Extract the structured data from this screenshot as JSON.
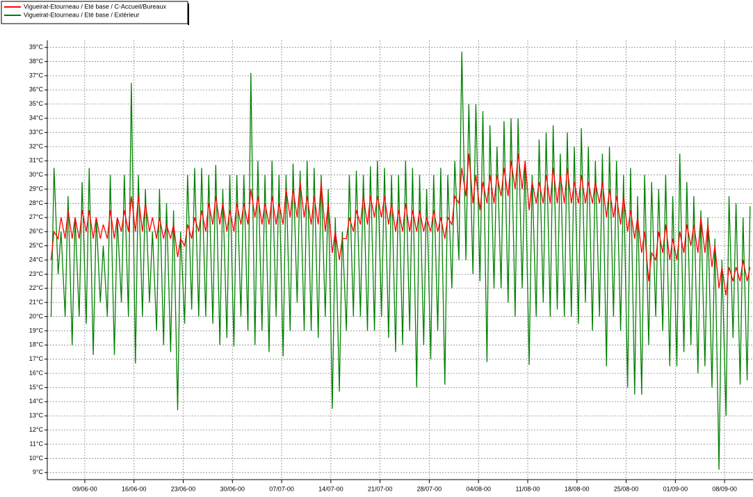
{
  "chart_data": {
    "type": "line",
    "x": [
      "2000-06-04T05:00",
      "2000-06-04T15:00",
      "2000-06-05T05:00",
      "2000-06-05T15:00",
      "2000-06-06T05:00",
      "2000-06-06T15:00",
      "2000-06-07T05:00",
      "2000-06-07T15:00",
      "2000-06-08T05:00",
      "2000-06-08T15:00",
      "2000-06-09T05:00",
      "2000-06-09T15:00",
      "2000-06-10T05:00",
      "2000-06-10T15:00",
      "2000-06-11T05:00",
      "2000-06-11T15:00",
      "2000-06-12T05:00",
      "2000-06-12T15:00",
      "2000-06-13T05:00",
      "2000-06-13T15:00",
      "2000-06-14T05:00",
      "2000-06-14T15:00",
      "2000-06-15T05:00",
      "2000-06-15T15:00",
      "2000-06-16T05:00",
      "2000-06-16T15:00",
      "2000-06-17T05:00",
      "2000-06-17T15:00",
      "2000-06-18T05:00",
      "2000-06-18T15:00",
      "2000-06-19T05:00",
      "2000-06-19T15:00",
      "2000-06-20T05:00",
      "2000-06-20T15:00",
      "2000-06-21T05:00",
      "2000-06-21T15:00",
      "2000-06-22T05:00",
      "2000-06-22T15:00",
      "2000-06-23T05:00",
      "2000-06-23T15:00",
      "2000-06-24T05:00",
      "2000-06-24T15:00",
      "2000-06-25T05:00",
      "2000-06-25T15:00",
      "2000-06-26T05:00",
      "2000-06-26T15:00",
      "2000-06-27T05:00",
      "2000-06-27T15:00",
      "2000-06-28T05:00",
      "2000-06-28T15:00",
      "2000-06-29T05:00",
      "2000-06-29T15:00",
      "2000-06-30T05:00",
      "2000-06-30T15:00",
      "2000-07-01T05:00",
      "2000-07-01T15:00",
      "2000-07-02T05:00",
      "2000-07-02T15:00",
      "2000-07-03T05:00",
      "2000-07-03T15:00",
      "2000-07-04T05:00",
      "2000-07-04T15:00",
      "2000-07-05T05:00",
      "2000-07-05T15:00",
      "2000-07-06T05:00",
      "2000-07-06T15:00",
      "2000-07-07T05:00",
      "2000-07-07T15:00",
      "2000-07-08T05:00",
      "2000-07-08T15:00",
      "2000-07-09T05:00",
      "2000-07-09T15:00",
      "2000-07-10T05:00",
      "2000-07-10T15:00",
      "2000-07-11T05:00",
      "2000-07-11T15:00",
      "2000-07-12T05:00",
      "2000-07-12T15:00",
      "2000-07-13T05:00",
      "2000-07-13T15:00",
      "2000-07-14T05:00",
      "2000-07-14T15:00",
      "2000-07-15T05:00",
      "2000-07-15T15:00",
      "2000-07-16T05:00",
      "2000-07-16T15:00",
      "2000-07-17T05:00",
      "2000-07-17T15:00",
      "2000-07-18T05:00",
      "2000-07-18T15:00",
      "2000-07-19T05:00",
      "2000-07-19T15:00",
      "2000-07-20T05:00",
      "2000-07-20T15:00",
      "2000-07-21T05:00",
      "2000-07-21T15:00",
      "2000-07-22T05:00",
      "2000-07-22T15:00",
      "2000-07-23T05:00",
      "2000-07-23T15:00",
      "2000-07-24T05:00",
      "2000-07-24T15:00",
      "2000-07-25T05:00",
      "2000-07-25T15:00",
      "2000-07-26T05:00",
      "2000-07-26T15:00",
      "2000-07-27T05:00",
      "2000-07-27T15:00",
      "2000-07-28T05:00",
      "2000-07-28T15:00",
      "2000-07-29T05:00",
      "2000-07-29T15:00",
      "2000-07-30T05:00",
      "2000-07-30T15:00",
      "2000-07-31T05:00",
      "2000-07-31T15:00",
      "2000-08-01T05:00",
      "2000-08-01T15:00",
      "2000-08-02T05:00",
      "2000-08-02T15:00",
      "2000-08-03T05:00",
      "2000-08-03T15:00",
      "2000-08-04T05:00",
      "2000-08-04T15:00",
      "2000-08-05T05:00",
      "2000-08-05T15:00",
      "2000-08-06T05:00",
      "2000-08-06T15:00",
      "2000-08-07T05:00",
      "2000-08-07T15:00",
      "2000-08-08T05:00",
      "2000-08-08T15:00",
      "2000-08-09T05:00",
      "2000-08-09T15:00",
      "2000-08-10T05:00",
      "2000-08-10T15:00",
      "2000-08-11T05:00",
      "2000-08-11T15:00",
      "2000-08-12T05:00",
      "2000-08-12T15:00",
      "2000-08-13T05:00",
      "2000-08-13T15:00",
      "2000-08-14T05:00",
      "2000-08-14T15:00",
      "2000-08-15T05:00",
      "2000-08-15T15:00",
      "2000-08-16T05:00",
      "2000-08-16T15:00",
      "2000-08-17T05:00",
      "2000-08-17T15:00",
      "2000-08-18T05:00",
      "2000-08-18T15:00",
      "2000-08-19T05:00",
      "2000-08-19T15:00",
      "2000-08-20T05:00",
      "2000-08-20T15:00",
      "2000-08-21T05:00",
      "2000-08-21T15:00",
      "2000-08-22T05:00",
      "2000-08-22T15:00",
      "2000-08-23T05:00",
      "2000-08-23T15:00",
      "2000-08-24T05:00",
      "2000-08-24T15:00",
      "2000-08-25T05:00",
      "2000-08-25T15:00",
      "2000-08-26T05:00",
      "2000-08-26T15:00",
      "2000-08-27T05:00",
      "2000-08-27T15:00",
      "2000-08-28T05:00",
      "2000-08-28T15:00",
      "2000-08-29T05:00",
      "2000-08-29T15:00",
      "2000-08-30T05:00",
      "2000-08-30T15:00",
      "2000-08-31T05:00",
      "2000-08-31T15:00",
      "2000-09-01T05:00",
      "2000-09-01T15:00",
      "2000-09-02T05:00",
      "2000-09-02T15:00",
      "2000-09-03T05:00",
      "2000-09-03T15:00",
      "2000-09-04T05:00",
      "2000-09-04T15:00",
      "2000-09-05T05:00",
      "2000-09-05T15:00",
      "2000-09-06T05:00",
      "2000-09-06T15:00",
      "2000-09-07T05:00",
      "2000-09-07T15:00",
      "2000-09-08T05:00",
      "2000-09-08T15:00",
      "2000-09-09T05:00",
      "2000-09-09T15:00",
      "2000-09-10T05:00",
      "2000-09-10T15:00",
      "2000-09-11T05:00",
      "2000-09-11T15:00"
    ],
    "series": [
      {
        "name": "Vigueirat-Etourneau / Eté base / C-Accueil/Bureaux",
        "color": "#ff0000",
        "values": [
          24,
          26,
          25.5,
          27,
          25.5,
          27.5,
          25.5,
          27,
          25.5,
          27.5,
          26,
          27.5,
          25.5,
          27,
          25.5,
          26.5,
          25.5,
          27.5,
          25.5,
          27,
          26,
          27.5,
          26,
          28.5,
          26,
          28.5,
          26,
          28,
          26,
          27,
          25.5,
          27,
          25.5,
          26.5,
          25.5,
          26.5,
          24.2,
          25.5,
          25,
          26.5,
          25.5,
          27,
          26,
          27.5,
          26,
          28,
          26.5,
          28.5,
          26.5,
          28,
          26,
          27.5,
          26,
          28,
          26.5,
          28,
          26.5,
          29,
          27,
          28.5,
          26.5,
          28,
          26.5,
          28.5,
          26.5,
          28,
          26.5,
          29,
          27,
          29,
          27,
          29.5,
          27,
          28.5,
          26.5,
          28.5,
          26.5,
          29.5,
          26,
          28,
          24.5,
          26,
          24,
          25.5,
          25.5,
          27,
          26,
          27.5,
          26.5,
          28.5,
          26.5,
          28.5,
          27,
          28.5,
          27,
          28.5,
          26.5,
          28,
          26,
          27.5,
          26,
          28,
          26,
          27.5,
          26,
          27.5,
          26,
          27,
          26,
          27.5,
          26,
          27,
          25.5,
          27,
          26.5,
          28.5,
          28,
          30.5,
          28.5,
          31.5,
          28,
          30,
          27.5,
          29.5,
          28,
          30,
          28,
          30,
          28.5,
          30.5,
          28.5,
          31,
          29,
          31.5,
          29,
          31,
          27.5,
          29.5,
          28,
          29.5,
          28,
          30,
          28,
          30.5,
          28,
          30,
          28,
          30.5,
          28,
          29.5,
          28,
          30,
          28,
          29.5,
          28,
          29.5,
          28,
          29.5,
          27,
          29,
          27,
          28.5,
          26.5,
          28.5,
          26,
          27.5,
          25.5,
          27,
          24.5,
          26,
          22.5,
          24.5,
          24,
          26,
          24.5,
          26.5,
          24,
          25.5,
          24,
          26,
          24.5,
          26.5,
          25,
          26.5,
          24.5,
          27,
          24.5,
          26.5,
          23.5,
          25,
          22,
          23.5,
          21.5,
          23.5,
          22.5,
          23.5,
          22.5,
          24,
          22.5,
          23.5
        ]
      },
      {
        "name": "Vigueirat-Etourneau / Eté base / Extérieur",
        "color": "#008000",
        "values": [
          20,
          30.5,
          23,
          26,
          20,
          28.5,
          18,
          27,
          20,
          29.5,
          19.5,
          30.5,
          17.3,
          27,
          21,
          25,
          20,
          30,
          17.3,
          27,
          21,
          30,
          20,
          36.5,
          16.7,
          30,
          20,
          29,
          21,
          26,
          19,
          29,
          18,
          28,
          17.5,
          27.5,
          13.4,
          26,
          19.5,
          30,
          20.5,
          30.5,
          20,
          30.5,
          20,
          30,
          19.5,
          30.7,
          18,
          29,
          18.5,
          30,
          17.9,
          30,
          20,
          30,
          19,
          37.2,
          18,
          31,
          19,
          30,
          17.5,
          31,
          20,
          30,
          17.2,
          30,
          19,
          30.8,
          21,
          30.3,
          19,
          31,
          19,
          30.5,
          18.5,
          30,
          20,
          29,
          13.5,
          27,
          14.7,
          26,
          19,
          30,
          20,
          30.3,
          20,
          30,
          19,
          30.6,
          19,
          31,
          20,
          30.5,
          18.5,
          30,
          17.5,
          30,
          18,
          31,
          19,
          30.5,
          15,
          30,
          18,
          29,
          17,
          30,
          19,
          30.5,
          15.2,
          30,
          22,
          31,
          24,
          38.7,
          24,
          35,
          23,
          35,
          22.5,
          34.5,
          16.8,
          33.5,
          22,
          32,
          22,
          33.8,
          21,
          34,
          20,
          34,
          22,
          31,
          16.6,
          30,
          20,
          32.5,
          21,
          33,
          20,
          33.5,
          20.5,
          31.5,
          20,
          33,
          20,
          32,
          19.5,
          33.3,
          21,
          32,
          19,
          31,
          20,
          31.5,
          16.5,
          32,
          20,
          31,
          19,
          30,
          15,
          30.5,
          14.5,
          28.5,
          14.5,
          30,
          18,
          29.5,
          20,
          29,
          19,
          30,
          16.5,
          28.5,
          16.5,
          31.5,
          17.5,
          29.5,
          18,
          28.5,
          16,
          27.5,
          16.5,
          27,
          15,
          25.5,
          9.2,
          24,
          13,
          28.5,
          18.5,
          28,
          15.2,
          27,
          15.5,
          27.8
        ]
      }
    ],
    "xlim": [
      "2000-06-03T16:00",
      "2000-09-12T01:00"
    ],
    "xticks": [
      {
        "value": "2000-06-09T00:00",
        "label": "09/06-00"
      },
      {
        "value": "2000-06-16T00:00",
        "label": "16/06-00"
      },
      {
        "value": "2000-06-23T00:00",
        "label": "23/06-00"
      },
      {
        "value": "2000-06-30T00:00",
        "label": "30/06-00"
      },
      {
        "value": "2000-07-07T00:00",
        "label": "07/07-00"
      },
      {
        "value": "2000-07-14T00:00",
        "label": "14/07-00"
      },
      {
        "value": "2000-07-21T00:00",
        "label": "21/07-00"
      },
      {
        "value": "2000-07-28T00:00",
        "label": "28/07-00"
      },
      {
        "value": "2000-08-04T00:00",
        "label": "04/08-00"
      },
      {
        "value": "2000-08-11T00:00",
        "label": "11/08-00"
      },
      {
        "value": "2000-08-18T00:00",
        "label": "18/08-00"
      },
      {
        "value": "2000-08-25T00:00",
        "label": "25/08-00"
      },
      {
        "value": "2000-09-01T00:00",
        "label": "01/09-00"
      },
      {
        "value": "2000-09-08T00:00",
        "label": "08/09-00"
      }
    ],
    "ylim": [
      8.5,
      39.5
    ],
    "yticks": [
      {
        "value": 9,
        "label": "9°C"
      },
      {
        "value": 10,
        "label": "10°C"
      },
      {
        "value": 11,
        "label": "11°C"
      },
      {
        "value": 12,
        "label": "12°C"
      },
      {
        "value": 13,
        "label": "13°C"
      },
      {
        "value": 14,
        "label": "14°C"
      },
      {
        "value": 15,
        "label": "15°C"
      },
      {
        "value": 16,
        "label": "16°C"
      },
      {
        "value": 17,
        "label": "17°C"
      },
      {
        "value": 18,
        "label": "18°C"
      },
      {
        "value": 19,
        "label": "19°C"
      },
      {
        "value": 20,
        "label": "20°C"
      },
      {
        "value": 21,
        "label": "21°C"
      },
      {
        "value": 22,
        "label": "22°C"
      },
      {
        "value": 23,
        "label": "23°C"
      },
      {
        "value": 24,
        "label": "24°C"
      },
      {
        "value": 25,
        "label": "25°C"
      },
      {
        "value": 26,
        "label": "26°C"
      },
      {
        "value": 27,
        "label": "27°C"
      },
      {
        "value": 28,
        "label": "28°C"
      },
      {
        "value": 29,
        "label": "29°C"
      },
      {
        "value": 30,
        "label": "30°C"
      },
      {
        "value": 31,
        "label": "31°C"
      },
      {
        "value": 32,
        "label": "32°C"
      },
      {
        "value": 33,
        "label": "33°C"
      },
      {
        "value": 34,
        "label": "34°C"
      },
      {
        "value": 35,
        "label": "35°C"
      },
      {
        "value": 36,
        "label": "36°C"
      },
      {
        "value": 37,
        "label": "37°C"
      },
      {
        "value": 38,
        "label": "38°C"
      },
      {
        "value": 39,
        "label": "39°C"
      }
    ],
    "grid": true,
    "legend": "top-left"
  }
}
